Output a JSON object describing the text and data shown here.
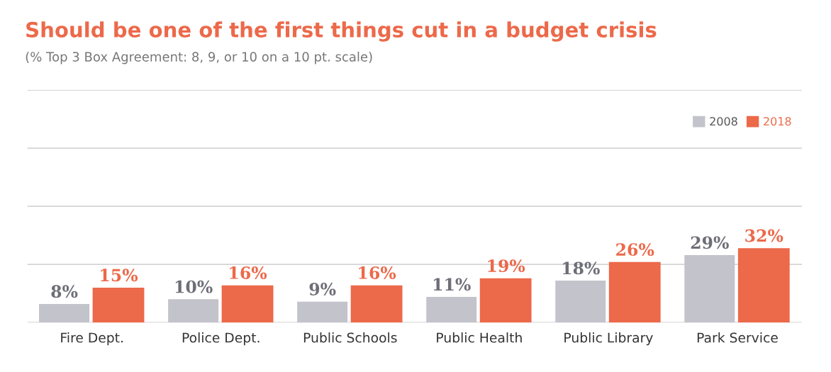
{
  "chart_data": {
    "type": "bar",
    "title": "Should be one of the first things cut in a budget crisis",
    "subtitle": "(% Top 3 Box Agreement: 8, 9, or 10 on a 10 pt. scale)",
    "categories": [
      "Fire Dept.",
      "Police Dept.",
      "Public Schools",
      "Public Health",
      "Public Library",
      "Park Service"
    ],
    "series": [
      {
        "name": "2008",
        "color": "#c3c3cb",
        "values": [
          8,
          10,
          9,
          11,
          18,
          29
        ],
        "value_labels": [
          "8%",
          "10%",
          "9%",
          "11%",
          "18%",
          "29%"
        ]
      },
      {
        "name": "2018",
        "color": "#ec694a",
        "values": [
          15,
          16,
          16,
          19,
          26,
          32
        ],
        "value_labels": [
          "15%",
          "16%",
          "16%",
          "19%",
          "26%",
          "32%"
        ]
      }
    ],
    "ylim": [
      0,
      100
    ],
    "yticks": [
      {
        "value": 0,
        "label": null
      },
      {
        "value": 25,
        "label": null
      },
      {
        "value": 50,
        "label": null
      },
      {
        "value": 75,
        "label": null
      },
      {
        "value": 100,
        "label": null
      }
    ],
    "grid": "y",
    "legend": "top right",
    "tick_labels": "x"
  }
}
